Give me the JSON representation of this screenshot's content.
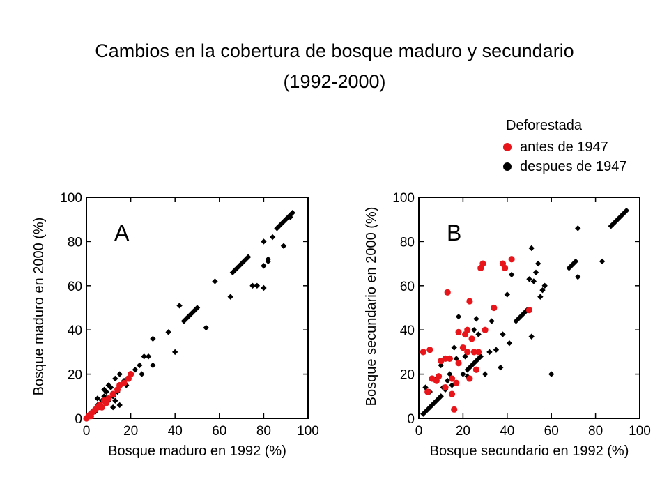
{
  "title_line1": "Cambios en la cobertura de bosque maduro y secundario",
  "title_line2": "(1992-2000)",
  "legend": {
    "heading": "Deforestada",
    "entries": [
      {
        "label": "antes de 1947",
        "color": "#e8161b"
      },
      {
        "label": "despues de 1947",
        "color": "#000000"
      }
    ]
  },
  "chart_data": [
    {
      "type": "scatter",
      "panel_label": "A",
      "xlabel": "Bosque maduro en 1992 (%)",
      "ylabel": "Bosque maduro en 2000 (%)",
      "xlim": [
        0,
        100
      ],
      "ylim": [
        0,
        100
      ],
      "xticks": [
        "0",
        "20",
        "40",
        "60",
        "80",
        "100"
      ],
      "yticks": [
        "0",
        "20",
        "40",
        "60",
        "80",
        "100"
      ],
      "series": [
        {
          "name": "antes de 1947",
          "color": "#e8161b",
          "marker": "circle",
          "points": [
            [
              0,
              0
            ],
            [
              1,
              1
            ],
            [
              2,
              2
            ],
            [
              3,
              3
            ],
            [
              4,
              4
            ],
            [
              5,
              5
            ],
            [
              2,
              1
            ],
            [
              6,
              6
            ],
            [
              8,
              8
            ],
            [
              10,
              9
            ],
            [
              12,
              11
            ],
            [
              14,
              13
            ],
            [
              15,
              15
            ],
            [
              17,
              16
            ],
            [
              19,
              18
            ],
            [
              20,
              20
            ],
            [
              9,
              7
            ],
            [
              7,
              5
            ]
          ]
        },
        {
          "name": "despues de 1947",
          "color": "#000000",
          "marker": "diamond",
          "points": [
            [
              2,
              2
            ],
            [
              4,
              3
            ],
            [
              5,
              6
            ],
            [
              6,
              5
            ],
            [
              7,
              8
            ],
            [
              8,
              10
            ],
            [
              9,
              12
            ],
            [
              10,
              15
            ],
            [
              11,
              14
            ],
            [
              12,
              10
            ],
            [
              13,
              8
            ],
            [
              14,
              12
            ],
            [
              15,
              6
            ],
            [
              13,
              18
            ],
            [
              15,
              20
            ],
            [
              17,
              17
            ],
            [
              18,
              15
            ],
            [
              5,
              9
            ],
            [
              8,
              13
            ],
            [
              10,
              8
            ],
            [
              12,
              5
            ],
            [
              22,
              22
            ],
            [
              24,
              24
            ],
            [
              26,
              28
            ],
            [
              28,
              28
            ],
            [
              25,
              20
            ],
            [
              30,
              24
            ],
            [
              30,
              36
            ],
            [
              37,
              39
            ],
            [
              40,
              30
            ],
            [
              42,
              51
            ],
            [
              44,
              44
            ],
            [
              45,
              45
            ],
            [
              46,
              46
            ],
            [
              47,
              47
            ],
            [
              48,
              48
            ],
            [
              49,
              49
            ],
            [
              50,
              50
            ],
            [
              54,
              41
            ],
            [
              58,
              62
            ],
            [
              65,
              55
            ],
            [
              66,
              66
            ],
            [
              67,
              67
            ],
            [
              68,
              68
            ],
            [
              69,
              69
            ],
            [
              70,
              70
            ],
            [
              71,
              71
            ],
            [
              72,
              72
            ],
            [
              73,
              73
            ],
            [
              75,
              60
            ],
            [
              77,
              60
            ],
            [
              80,
              59
            ],
            [
              80,
              69
            ],
            [
              80,
              80
            ],
            [
              82,
              72
            ],
            [
              82,
              71
            ],
            [
              84,
              82
            ],
            [
              86,
              86
            ],
            [
              87,
              87
            ],
            [
              88,
              88
            ],
            [
              89,
              89
            ],
            [
              90,
              90
            ],
            [
              91,
              91
            ],
            [
              92,
              92
            ],
            [
              93,
              93
            ],
            [
              89,
              78
            ],
            [
              92,
              91
            ]
          ]
        }
      ]
    },
    {
      "type": "scatter",
      "panel_label": "B",
      "xlabel": "Bosque secundario en 1992 (%)",
      "ylabel": "Bosque secundario en 2000 (%)",
      "xlim": [
        0,
        100
      ],
      "ylim": [
        0,
        100
      ],
      "xticks": [
        "0",
        "20",
        "40",
        "60",
        "80",
        "100"
      ],
      "yticks": [
        "0",
        "20",
        "40",
        "60",
        "80",
        "100"
      ],
      "series": [
        {
          "name": "antes de 1947",
          "color": "#e8161b",
          "marker": "circle",
          "points": [
            [
              2,
              30
            ],
            [
              4,
              12
            ],
            [
              5,
              31
            ],
            [
              6,
              18
            ],
            [
              9,
              19
            ],
            [
              10,
              26
            ],
            [
              12,
              14
            ],
            [
              12,
              27
            ],
            [
              13,
              57
            ],
            [
              14,
              27
            ],
            [
              15,
              18
            ],
            [
              15,
              11
            ],
            [
              16,
              4
            ],
            [
              18,
              25
            ],
            [
              18,
              39
            ],
            [
              20,
              32
            ],
            [
              21,
              38
            ],
            [
              22,
              40
            ],
            [
              22,
              30
            ],
            [
              23,
              53
            ],
            [
              23,
              18
            ],
            [
              24,
              36
            ],
            [
              25,
              30
            ],
            [
              26,
              22
            ],
            [
              27,
              30
            ],
            [
              28,
              68
            ],
            [
              29,
              70
            ],
            [
              30,
              40
            ],
            [
              34,
              50
            ],
            [
              38,
              70
            ],
            [
              39,
              68
            ],
            [
              42,
              72
            ],
            [
              50,
              49
            ],
            [
              17,
              16
            ],
            [
              8,
              17
            ]
          ]
        },
        {
          "name": "despues de 1947",
          "color": "#000000",
          "marker": "diamond",
          "points": [
            [
              2,
              2
            ],
            [
              3,
              3
            ],
            [
              4,
              4
            ],
            [
              5,
              5
            ],
            [
              6,
              6
            ],
            [
              7,
              7
            ],
            [
              8,
              8
            ],
            [
              9,
              9
            ],
            [
              10,
              10
            ],
            [
              3,
              14
            ],
            [
              5,
              12
            ],
            [
              8,
              18
            ],
            [
              10,
              24
            ],
            [
              11,
              14
            ],
            [
              12,
              13
            ],
            [
              13,
              17
            ],
            [
              14,
              20
            ],
            [
              15,
              15
            ],
            [
              16,
              32
            ],
            [
              17,
              27
            ],
            [
              18,
              46
            ],
            [
              20,
              20
            ],
            [
              21,
              28
            ],
            [
              22,
              22
            ],
            [
              23,
              23
            ],
            [
              24,
              24
            ],
            [
              25,
              25
            ],
            [
              26,
              26
            ],
            [
              27,
              27
            ],
            [
              28,
              28
            ],
            [
              22,
              19
            ],
            [
              25,
              40
            ],
            [
              26,
              45
            ],
            [
              27,
              38
            ],
            [
              30,
              20
            ],
            [
              32,
              30
            ],
            [
              33,
              44
            ],
            [
              35,
              31
            ],
            [
              37,
              23
            ],
            [
              38,
              38
            ],
            [
              40,
              56
            ],
            [
              41,
              34
            ],
            [
              42,
              65
            ],
            [
              44,
              44
            ],
            [
              45,
              45
            ],
            [
              46,
              46
            ],
            [
              47,
              47
            ],
            [
              48,
              48
            ],
            [
              49,
              49
            ],
            [
              50,
              63
            ],
            [
              51,
              77
            ],
            [
              52,
              62
            ],
            [
              53,
              66
            ],
            [
              54,
              70
            ],
            [
              55,
              55
            ],
            [
              56,
              58
            ],
            [
              57,
              60
            ],
            [
              60,
              20
            ],
            [
              68,
              68
            ],
            [
              69,
              69
            ],
            [
              70,
              70
            ],
            [
              71,
              71
            ],
            [
              72,
              86
            ],
            [
              72,
              64
            ],
            [
              83,
              71
            ],
            [
              87,
              87
            ],
            [
              88,
              88
            ],
            [
              89,
              89
            ],
            [
              90,
              90
            ],
            [
              91,
              91
            ],
            [
              92,
              92
            ],
            [
              93,
              93
            ],
            [
              94,
              94
            ],
            [
              51,
              37
            ]
          ]
        }
      ]
    }
  ]
}
